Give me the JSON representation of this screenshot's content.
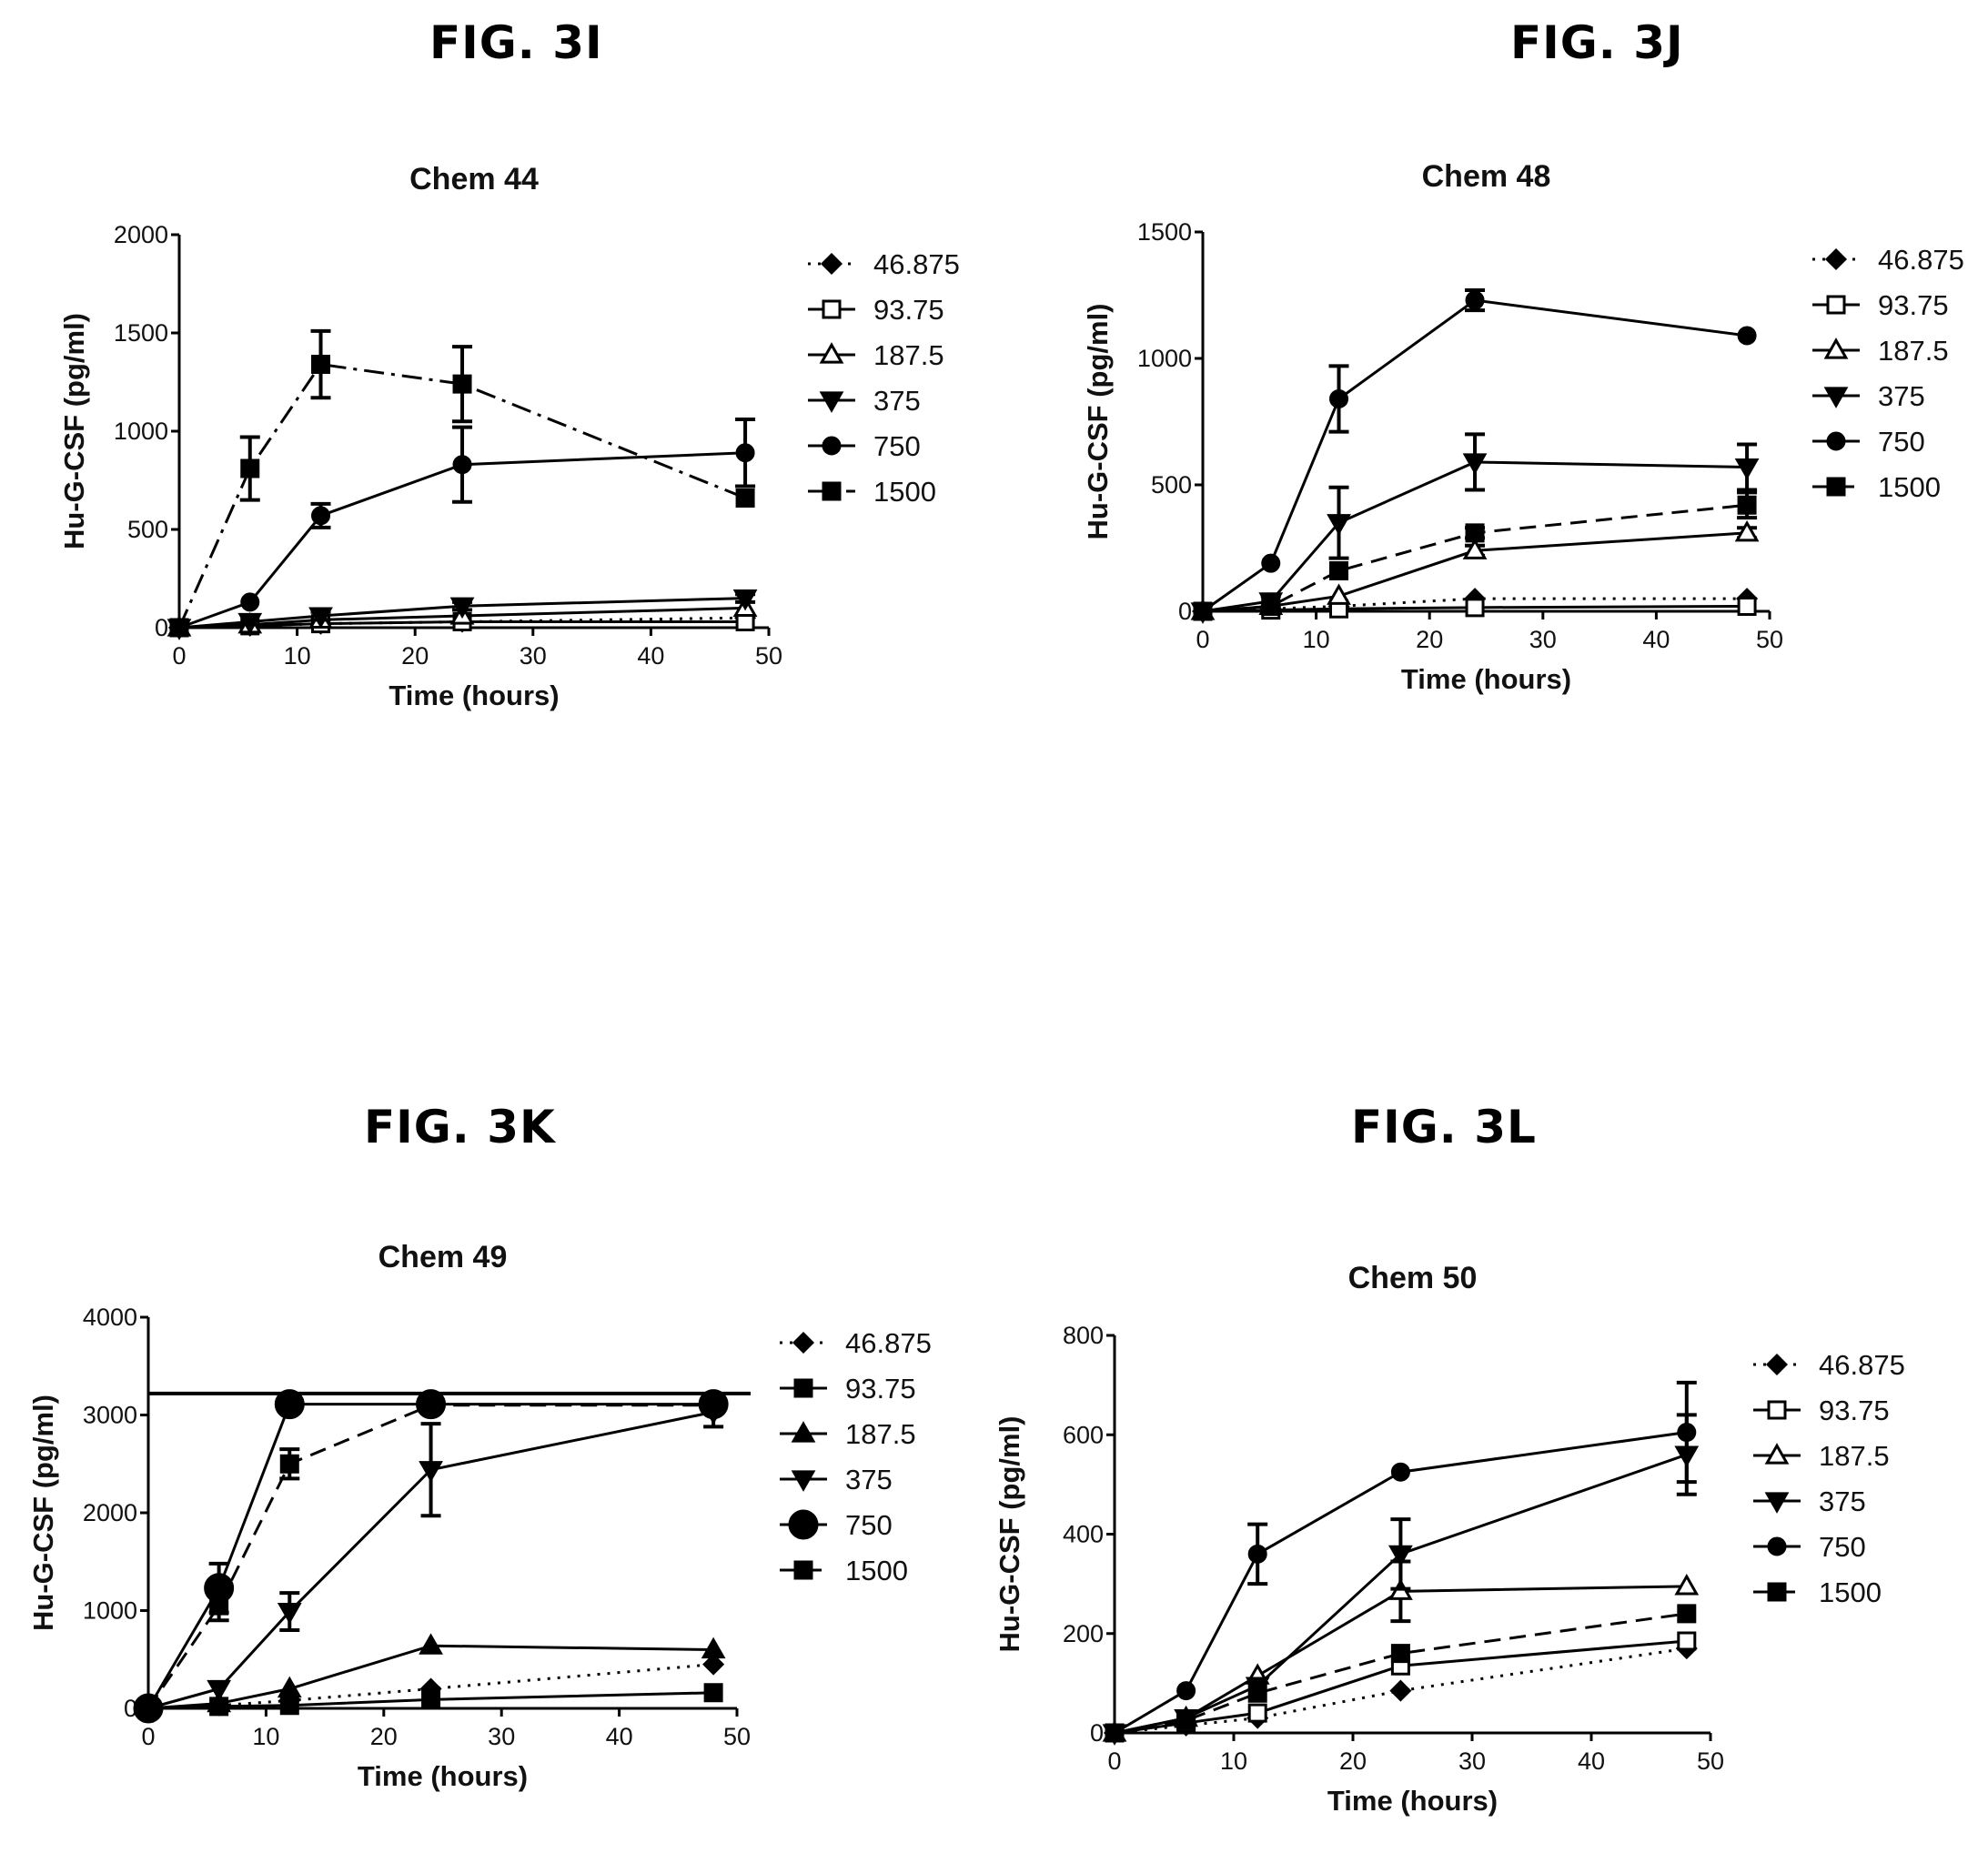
{
  "figures": [
    {
      "label": "FIG. 3I"
    },
    {
      "label": "FIG. 3J"
    },
    {
      "label": "FIG. 3K"
    },
    {
      "label": "FIG. 3L"
    }
  ],
  "chart_data": [
    {
      "type": "line",
      "title": "Chem 44",
      "xlabel": "Time (hours)",
      "ylabel": "Hu-G-CSF (pg/ml)",
      "xlim": [
        0,
        50
      ],
      "ylim": [
        0,
        2000
      ],
      "xticks": [
        "0",
        "10",
        "20",
        "30",
        "40",
        "50"
      ],
      "yticks": [
        "0",
        "500",
        "1000",
        "1500",
        "2000"
      ],
      "legend_position": "right",
      "x": [
        0,
        6,
        12,
        24,
        48
      ],
      "series": [
        {
          "name": "46.875",
          "marker": "diamond",
          "filled": true,
          "dash": "dot",
          "values": [
            0,
            10,
            20,
            30,
            50
          ],
          "err": [
            0,
            0,
            0,
            0,
            0
          ]
        },
        {
          "name": "93.75",
          "marker": "square",
          "filled": false,
          "dash": "solid",
          "values": [
            0,
            10,
            20,
            30,
            30
          ],
          "err": [
            0,
            0,
            0,
            0,
            0
          ]
        },
        {
          "name": "187.5",
          "marker": "triangle",
          "filled": false,
          "dash": "solid",
          "values": [
            0,
            15,
            40,
            60,
            100
          ],
          "err": [
            0,
            0,
            0,
            0,
            0
          ]
        },
        {
          "name": "375",
          "marker": "triangle-down",
          "filled": true,
          "dash": "solid",
          "values": [
            0,
            30,
            60,
            110,
            150
          ],
          "err": [
            0,
            0,
            20,
            20,
            20
          ]
        },
        {
          "name": "750",
          "marker": "circle",
          "filled": true,
          "dash": "solid",
          "values": [
            0,
            130,
            570,
            830,
            890
          ],
          "err": [
            0,
            0,
            60,
            190,
            170
          ]
        },
        {
          "name": "1500",
          "marker": "square",
          "filled": true,
          "dash": "dashdot",
          "values": [
            0,
            810,
            1340,
            1240,
            660
          ],
          "err": [
            0,
            160,
            170,
            190,
            0
          ]
        }
      ]
    },
    {
      "type": "line",
      "title": "Chem 48",
      "xlabel": "Time (hours)",
      "ylabel": "Hu-G-CSF (pg/ml)",
      "xlim": [
        0,
        50
      ],
      "ylim": [
        0,
        1500
      ],
      "xticks": [
        "0",
        "10",
        "20",
        "30",
        "40",
        "50"
      ],
      "yticks": [
        "0",
        "500",
        "1000",
        "1500"
      ],
      "legend_position": "right",
      "x": [
        0,
        6,
        12,
        24,
        48
      ],
      "series": [
        {
          "name": "46.875",
          "marker": "diamond",
          "filled": true,
          "dash": "dot",
          "values": [
            0,
            10,
            20,
            50,
            50
          ],
          "err": [
            0,
            0,
            0,
            0,
            0
          ]
        },
        {
          "name": "93.75",
          "marker": "square",
          "filled": false,
          "dash": "solid",
          "values": [
            0,
            5,
            10,
            15,
            20
          ],
          "err": [
            0,
            0,
            0,
            0,
            0
          ]
        },
        {
          "name": "187.5",
          "marker": "triangle",
          "filled": false,
          "dash": "solid",
          "values": [
            0,
            20,
            60,
            240,
            310
          ],
          "err": [
            0,
            0,
            0,
            20,
            20
          ]
        },
        {
          "name": "375",
          "marker": "triangle-down",
          "filled": true,
          "dash": "solid",
          "values": [
            0,
            40,
            350,
            590,
            570
          ],
          "err": [
            0,
            20,
            140,
            110,
            90
          ]
        },
        {
          "name": "750",
          "marker": "circle",
          "filled": true,
          "dash": "solid",
          "values": [
            0,
            190,
            840,
            1230,
            1090
          ],
          "err": [
            0,
            0,
            130,
            40,
            0
          ]
        },
        {
          "name": "1500",
          "marker": "square",
          "filled": true,
          "dash": "dash",
          "values": [
            0,
            20,
            160,
            310,
            420
          ],
          "err": [
            0,
            0,
            0,
            20,
            50
          ]
        }
      ]
    },
    {
      "type": "line",
      "title": "Chem 49",
      "xlabel": "Time (hours)",
      "ylabel": "Hu-G-CSF (pg/ml)",
      "xlim": [
        0,
        50
      ],
      "ylim": [
        0,
        4000
      ],
      "xticks": [
        "0",
        "10",
        "20",
        "30",
        "40",
        "50"
      ],
      "yticks": [
        "0",
        "1000",
        "2000",
        "3000",
        "4000"
      ],
      "legend_position": "right",
      "reference_line": 3220,
      "x": [
        0,
        6,
        12,
        24,
        48
      ],
      "series": [
        {
          "name": "46.875",
          "marker": "diamond",
          "filled": true,
          "dash": "dot",
          "values": [
            0,
            30,
            80,
            200,
            450
          ],
          "err": [
            0,
            0,
            0,
            0,
            0
          ]
        },
        {
          "name": "93.75",
          "marker": "square",
          "filled": true,
          "dash": "solid",
          "values": [
            0,
            20,
            30,
            90,
            160
          ],
          "err": [
            0,
            0,
            0,
            0,
            0
          ]
        },
        {
          "name": "187.5",
          "marker": "triangle",
          "filled": true,
          "dash": "solid",
          "values": [
            0,
            50,
            200,
            640,
            600
          ],
          "err": [
            0,
            0,
            0,
            0,
            0
          ]
        },
        {
          "name": "375",
          "marker": "triangle-down",
          "filled": true,
          "dash": "solid",
          "values": [
            0,
            200,
            990,
            2440,
            3030
          ],
          "err": [
            0,
            0,
            190,
            470,
            150
          ]
        },
        {
          "name": "750",
          "marker": "circle",
          "filled": true,
          "dash": "solid",
          "values": [
            0,
            1230,
            3110,
            3110,
            3110
          ],
          "err": [
            0,
            250,
            0,
            0,
            0
          ]
        },
        {
          "name": "1500",
          "marker": "square",
          "filled": true,
          "dash": "dash",
          "values": [
            0,
            1050,
            2500,
            3100,
            3100
          ],
          "err": [
            0,
            150,
            150,
            0,
            0
          ]
        }
      ]
    },
    {
      "type": "line",
      "title": "Chem 50",
      "xlabel": "Time (hours)",
      "ylabel": "Hu-G-CSF (pg/ml)",
      "xlim": [
        0,
        50
      ],
      "ylim": [
        0,
        800
      ],
      "xticks": [
        "0",
        "10",
        "20",
        "30",
        "40",
        "50"
      ],
      "yticks": [
        "0",
        "200",
        "400",
        "600",
        "800"
      ],
      "legend_position": "right",
      "x": [
        0,
        6,
        12,
        24,
        48
      ],
      "series": [
        {
          "name": "46.875",
          "marker": "diamond",
          "filled": true,
          "dash": "dot",
          "values": [
            0,
            15,
            30,
            85,
            170
          ],
          "err": [
            0,
            0,
            0,
            0,
            0
          ]
        },
        {
          "name": "93.75",
          "marker": "square",
          "filled": false,
          "dash": "solid",
          "values": [
            0,
            20,
            40,
            135,
            185
          ],
          "err": [
            0,
            0,
            0,
            0,
            0
          ]
        },
        {
          "name": "187.5",
          "marker": "triangle",
          "filled": false,
          "dash": "solid",
          "values": [
            0,
            30,
            115,
            285,
            295
          ],
          "err": [
            0,
            0,
            0,
            60,
            0
          ]
        },
        {
          "name": "375",
          "marker": "triangle-down",
          "filled": true,
          "dash": "solid",
          "values": [
            0,
            30,
            95,
            360,
            560
          ],
          "err": [
            0,
            0,
            0,
            70,
            80
          ]
        },
        {
          "name": "750",
          "marker": "circle",
          "filled": true,
          "dash": "solid",
          "values": [
            0,
            85,
            360,
            525,
            605
          ],
          "err": [
            0,
            0,
            60,
            0,
            100
          ]
        },
        {
          "name": "1500",
          "marker": "square",
          "filled": true,
          "dash": "dash",
          "values": [
            0,
            25,
            80,
            160,
            240
          ],
          "err": [
            0,
            0,
            0,
            0,
            0
          ]
        }
      ]
    }
  ]
}
